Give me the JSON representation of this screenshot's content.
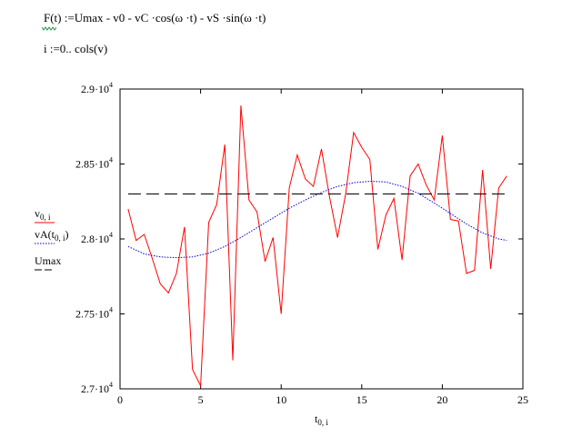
{
  "equations": {
    "line1": "F(t) :=Umax -  v0 -  vC ·cos(ω ·t) -  vS ·sin(ω ·t)",
    "line2": "i :=0.. cols(v)"
  },
  "colors": {
    "v0": "#ff0000",
    "vA": "#0000cc",
    "Umax": "#000000"
  },
  "chart_data": {
    "type": "line",
    "xlim": [
      0,
      25
    ],
    "ylim": [
      27000,
      29000
    ],
    "x_ticks": [
      "0",
      "5",
      "10",
      "15",
      "20",
      "25"
    ],
    "y_ticks": [
      {
        "value": 29000,
        "mant": "2.9",
        "exp": "4"
      },
      {
        "value": 28500,
        "mant": "2.85",
        "exp": "4"
      },
      {
        "value": 28000,
        "mant": "2.8",
        "exp": "4"
      },
      {
        "value": 27500,
        "mant": "2.75",
        "exp": "4"
      },
      {
        "value": 27000,
        "mant": "2.7",
        "exp": "4"
      }
    ],
    "xlabel": {
      "main": "t",
      "sub": "0, i"
    },
    "legend": [
      {
        "main": "v",
        "sub": "0, i",
        "style": "solid",
        "color": "#ff0000"
      },
      {
        "main": "vA(t",
        "sub": "0, i",
        "tail": ")",
        "style": "dotted",
        "color": "#0000cc"
      },
      {
        "main": "Umax",
        "sub": "",
        "style": "dashed",
        "color": "#000000"
      }
    ],
    "series": [
      {
        "name": "v0,i",
        "style": "solid",
        "x": [
          0.5,
          1.0,
          1.5,
          2.0,
          2.5,
          3.0,
          3.5,
          4.0,
          4.5,
          5.0,
          5.5,
          6.0,
          6.5,
          7.0,
          7.5,
          8.0,
          8.5,
          9.0,
          9.5,
          10.0,
          10.5,
          11.0,
          11.5,
          12.0,
          12.5,
          13.0,
          13.5,
          14.0,
          14.5,
          15.0,
          15.5,
          16.0,
          16.5,
          17.0,
          17.5,
          18.0,
          18.5,
          19.0,
          19.5,
          20.0,
          20.5,
          21.0,
          21.5,
          22.0,
          22.5,
          23.0,
          23.5,
          24.0
        ],
        "values": [
          28200,
          27990,
          28030,
          27870,
          27700,
          27640,
          27770,
          28080,
          27130,
          27020,
          28110,
          28230,
          28630,
          27190,
          28890,
          28260,
          28180,
          27850,
          28010,
          27500,
          28340,
          28560,
          28400,
          28350,
          28600,
          28280,
          28010,
          28300,
          28710,
          28610,
          28530,
          27930,
          28160,
          28270,
          27860,
          28420,
          28500,
          28360,
          28260,
          28690,
          28130,
          28120,
          27770,
          27790,
          28460,
          27800,
          28340,
          28420
        ]
      },
      {
        "name": "vA(t0,i)",
        "style": "dotted",
        "x": [
          0.5,
          1.5,
          2.5,
          3.5,
          4.5,
          5.5,
          6.5,
          7.5,
          8.5,
          9.5,
          10.5,
          11.5,
          12.5,
          13.5,
          14.5,
          15.5,
          16.5,
          17.5,
          18.5,
          19.5,
          20.5,
          21.5,
          22.5,
          23.5,
          24.0
        ],
        "values": [
          27950,
          27900,
          27880,
          27875,
          27880,
          27905,
          27950,
          28010,
          28075,
          28140,
          28205,
          28260,
          28310,
          28350,
          28375,
          28385,
          28380,
          28350,
          28305,
          28240,
          28170,
          28100,
          28040,
          28000,
          27990
        ]
      },
      {
        "name": "Umax",
        "style": "dashed",
        "x": [
          0.5,
          24.0
        ],
        "values": [
          28300,
          28300
        ]
      }
    ]
  }
}
